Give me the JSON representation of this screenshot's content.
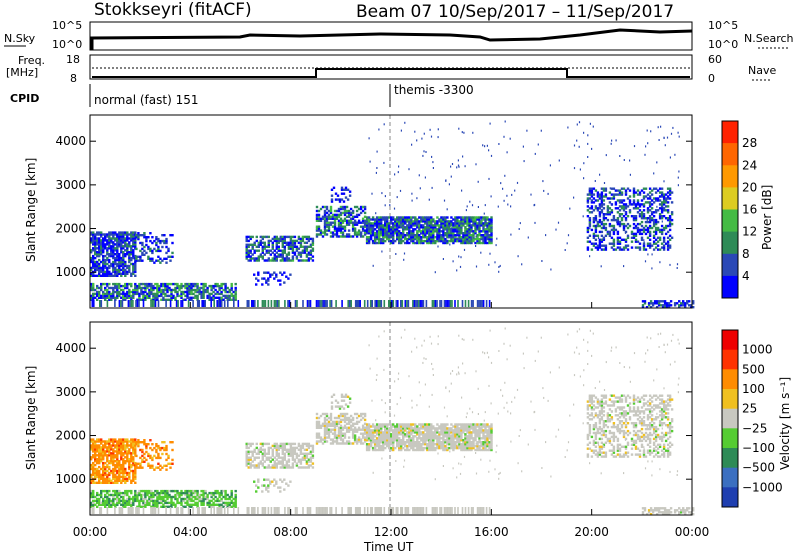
{
  "header": {
    "station": "Stokkseyri (fitACF)",
    "beam": "Beam 07",
    "dates": "10/Sep/2017 – 11/Sep/2017"
  },
  "strip": {
    "nsky_label": "N.Sky",
    "nsky_ticks": [
      "10^5",
      "10^0"
    ],
    "nsearch_label": "N.Search",
    "nsearch_ticks": [
      "10^5",
      "10^0"
    ],
    "freq_label_1": "Freq.",
    "freq_label_2": "[MHz]",
    "freq_ticks": [
      "18",
      "8"
    ],
    "nave_label": "Nave",
    "nave_ticks": [
      "60",
      "0"
    ],
    "cpid_label": "CPID",
    "cpid_modes": [
      "normal (fast) 151",
      "themis -3300"
    ]
  },
  "chart_data": [
    {
      "type": "heatmap",
      "name": "power",
      "ylabel": "Slant Range [km]",
      "xlabel": "",
      "ylim": [
        180,
        4600
      ],
      "yticks": [
        "1000",
        "2000",
        "3000",
        "4000"
      ],
      "colorbar_label": "Power [dB]",
      "colorbar_ticks": [
        "4",
        "8",
        "12",
        "16",
        "20",
        "24",
        "28"
      ],
      "colors": [
        "#0000ff",
        "#2a48b6",
        "#2e8b57",
        "#44bb44",
        "#ddcc22",
        "#ff9900",
        "#ff6600",
        "#ff2200"
      ]
    },
    {
      "type": "heatmap",
      "name": "velocity",
      "ylabel": "Slant Range [km]",
      "xlabel": "Time UT",
      "ylim": [
        180,
        4600
      ],
      "yticks": [
        "1000",
        "2000",
        "3000",
        "4000"
      ],
      "xticks": [
        "00:00",
        "04:00",
        "08:00",
        "12:00",
        "16:00",
        "20:00",
        "00:00"
      ],
      "colorbar_label": "Velocity [m s⁻¹]",
      "colorbar_ticks": [
        "1000",
        "500",
        "100",
        "25",
        "−25",
        "−100",
        "−500",
        "−1000"
      ],
      "colors": [
        "#1f3fb0",
        "#3b6fc0",
        "#2e8b57",
        "#55cc33",
        "#c8c8c0",
        "#f0c020",
        "#ff8c00",
        "#ff3300",
        "#ee0000"
      ]
    }
  ]
}
